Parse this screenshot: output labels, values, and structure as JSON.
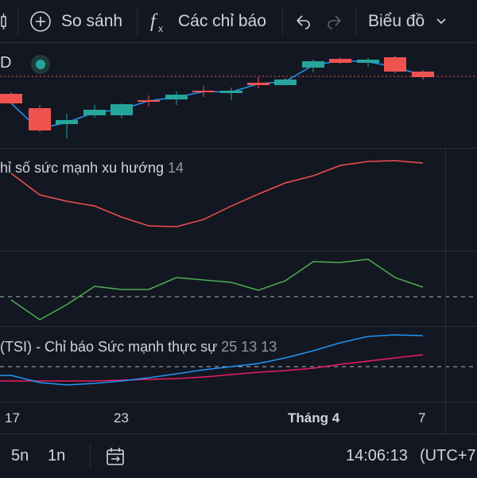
{
  "toolbar": {
    "compare_label": "So sánh",
    "indicators_label": "Các chỉ báo",
    "chart_type_label": "Biểu đồ"
  },
  "main_pane": {
    "symbol_fragment": "D",
    "status_color": "#26a69a"
  },
  "panes": {
    "trend_strength": {
      "title": "hỉ số sức mạnh xu hướng",
      "params": "14",
      "line_color": "#f05050"
    },
    "second": {
      "line_color": "#4caf50"
    },
    "tsi": {
      "title": "(TSI) - Chỉ báo Sức mạnh thực sự",
      "params": "25 13 13",
      "line_color": "#2196f3",
      "signal_color": "#e91e63"
    }
  },
  "time_axis": {
    "labels": [
      "17",
      "23",
      "Tháng 4",
      "7"
    ]
  },
  "bottom_bar": {
    "range_5m": "5n",
    "range_1y": "1n",
    "time": "14:06:13",
    "timezone": "(UTC+7"
  },
  "colors": {
    "up": "#26a69a",
    "down": "#ef5350",
    "background": "#131722"
  }
}
